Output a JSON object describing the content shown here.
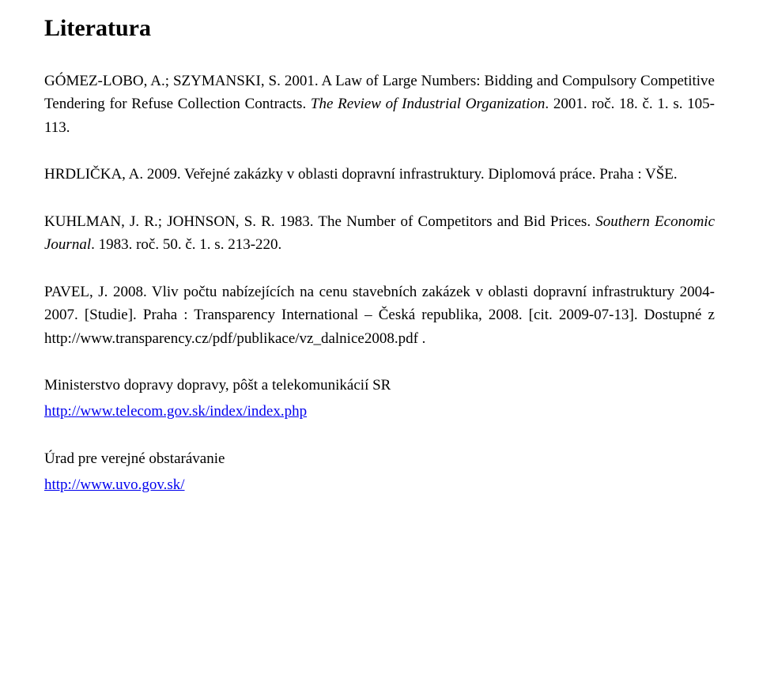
{
  "heading": "Literatura",
  "entries": [
    {
      "segments": [
        {
          "text": "GÓMEZ-LOBO, A.; SZYMANSKI, S. 2001. A Law of Large Numbers: Bidding and Compulsory Competitive Tendering for Refuse Collection Contracts. "
        },
        {
          "text": "The Review of Industrial Organization",
          "italic": true
        },
        {
          "text": ". 2001. roč. 18. č. 1. s. 105-113."
        }
      ]
    },
    {
      "segments": [
        {
          "text": "HRDLIČKA, A. 2009. Veřejné zakázky v oblasti dopravní infrastruktury. Diplomová práce. Praha : VŠE."
        }
      ]
    },
    {
      "segments": [
        {
          "text": "KUHLMAN, J. R.; JOHNSON, S. R. 1983. The Number of Competitors and Bid Prices. "
        },
        {
          "text": "Southern Economic Journal",
          "italic": true
        },
        {
          "text": ". 1983. roč. 50. č. 1. s. 213-220."
        }
      ]
    },
    {
      "segments": [
        {
          "text": "PAVEL, J. 2008. Vliv počtu nabízejících na cenu stavebních zakázek v oblasti dopravní infrastruktury 2004-2007. [Studie]. Praha : Transparency International – Česká republika, 2008. [cit. 2009-07-13]. Dostupné z http://www.transparency.cz/pdf/publikace/vz_dalnice2008.pdf ."
        }
      ]
    },
    {
      "tight": true,
      "segments": [
        {
          "text": "Ministerstvo dopravy dopravy, pôšt a telekomunikácií SR"
        }
      ]
    },
    {
      "segments": [
        {
          "text": "http://www.telecom.gov.sk/index/index.php",
          "link": true
        }
      ]
    },
    {
      "tight": true,
      "segments": [
        {
          "text": "Úrad pre verejné obstarávanie"
        }
      ]
    },
    {
      "segments": [
        {
          "text": "http://www.uvo.gov.sk/",
          "link": true
        }
      ]
    }
  ]
}
